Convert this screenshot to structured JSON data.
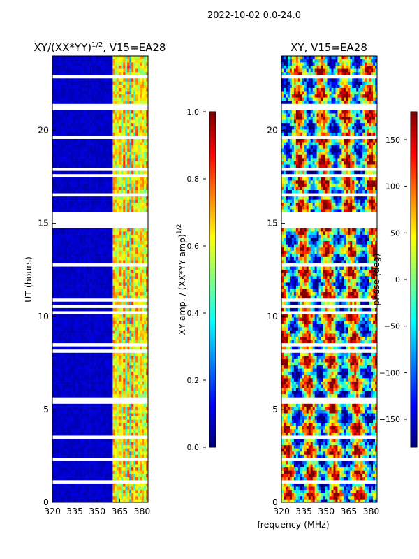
{
  "figure_title": "2022-10-02 0.0-24.0",
  "colormap": [
    "#00007f",
    "#0000ff",
    "#007fff",
    "#00ffff",
    "#7fff7f",
    "#ffff00",
    "#ff7f00",
    "#ff0000",
    "#7f0000"
  ],
  "chart_data": [
    {
      "type": "heatmap",
      "title": "XY/(XX*YY)",
      "title_superscript": "1/2",
      "title_suffix": ", V15=EA28",
      "xlabel": "",
      "ylabel": "UT (hours)",
      "xlim": [
        320,
        384
      ],
      "ylim": [
        0,
        24
      ],
      "xticks": [
        320,
        335,
        350,
        365,
        380
      ],
      "yticks": [
        0,
        5,
        10,
        15,
        20
      ],
      "colorbar": {
        "label": "XY amp. / (XX*YY amp)",
        "label_superscript": "1/2",
        "range": [
          0.0,
          1.0
        ],
        "ticks": [
          "0.0",
          "0.2",
          "0.4",
          "0.6",
          "0.8",
          "1.0"
        ]
      }
    },
    {
      "type": "heatmap",
      "title": "XY, V15=EA28",
      "xlabel": "frequency (MHz)",
      "ylabel": "",
      "xlim": [
        320,
        384
      ],
      "ylim": [
        0,
        24
      ],
      "xticks": [
        320,
        335,
        350,
        365,
        380
      ],
      "yticks": [
        0,
        5,
        10,
        15,
        20
      ],
      "colorbar": {
        "label": "phase (deg)",
        "range": [
          -180,
          180
        ],
        "ticks": [
          "−150",
          "−100",
          "−50",
          "0",
          "50",
          "100",
          "150"
        ]
      }
    }
  ]
}
